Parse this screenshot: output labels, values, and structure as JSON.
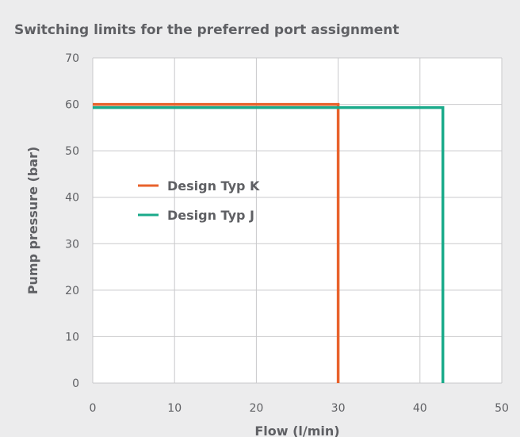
{
  "chart_data": {
    "type": "line",
    "title": "Switching limits for the preferred port assignment",
    "xlabel": "Flow (l/min)",
    "ylabel": "Pump pressure (bar)",
    "xlim": [
      0,
      50
    ],
    "ylim": [
      0,
      70
    ],
    "x_ticks": [
      "0",
      "10",
      "20",
      "30",
      "40",
      "50"
    ],
    "y_ticks": [
      "0",
      "10",
      "20",
      "30",
      "40",
      "50",
      "60",
      "70"
    ],
    "grid": true,
    "legend_position": "center-left",
    "series": [
      {
        "name": "Design Typ K",
        "color": "#e8622c",
        "points": [
          [
            0,
            60
          ],
          [
            30,
            60
          ],
          [
            30,
            0
          ]
        ]
      },
      {
        "name": "Design Typ J",
        "color": "#1aaa8a",
        "points": [
          [
            0,
            59.3
          ],
          [
            42.8,
            59.3
          ],
          [
            42.8,
            0
          ]
        ]
      }
    ]
  }
}
